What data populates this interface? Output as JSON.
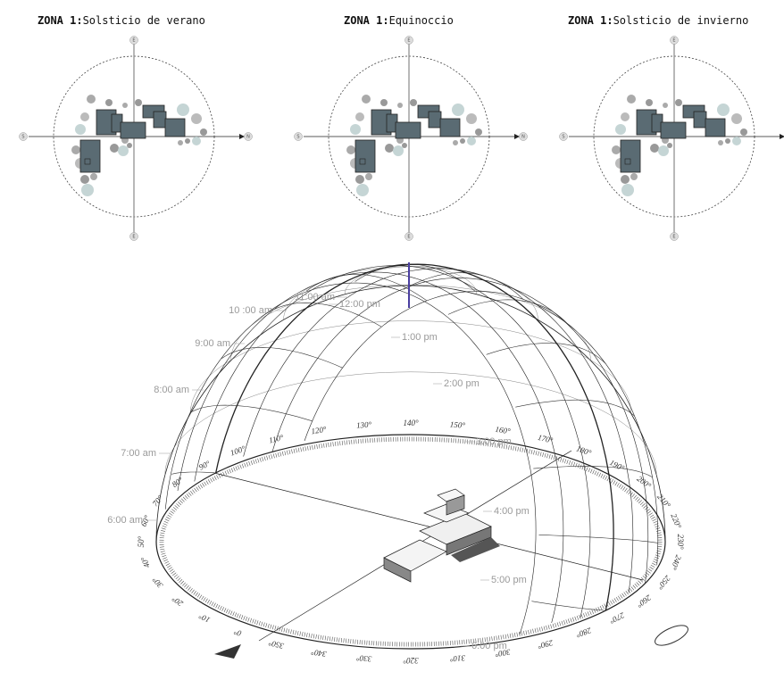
{
  "zones": [
    {
      "label": "ZONA 1:",
      "title": "Solsticio de verano",
      "compass": [
        "E",
        "S",
        "N",
        "E"
      ]
    },
    {
      "label": "ZONA 1:",
      "title": "Equinoccio",
      "compass": [
        "E",
        "S",
        "N",
        "E"
      ]
    },
    {
      "label": "ZONA 1:",
      "title": "Solsticio de invierno",
      "compass": [
        "E",
        "S",
        "N",
        "E"
      ]
    }
  ],
  "sunpath": {
    "hours": [
      "10 :00 am",
      "11:00 am",
      "12:00 pm",
      "9:00 am",
      "1:00 pm",
      "8:00 am",
      "2:00 pm",
      "7:00 am",
      "3:00 pm",
      "6:00 am",
      "4:00 pm",
      "5:00 pm",
      "6:00 pm"
    ],
    "degrees": [
      "0°",
      "10°",
      "20°",
      "30°",
      "40°",
      "50°",
      "60°",
      "70°",
      "80°",
      "90°",
      "100°",
      "110°",
      "120°",
      "130°",
      "140°",
      "150°",
      "160°",
      "170°",
      "180°",
      "190°",
      "200°",
      "210°",
      "220°",
      "230°",
      "240°",
      "250°",
      "260°",
      "270°",
      "280°",
      "290°",
      "300°",
      "310°",
      "320°",
      "330°",
      "340°",
      "350°"
    ]
  }
}
